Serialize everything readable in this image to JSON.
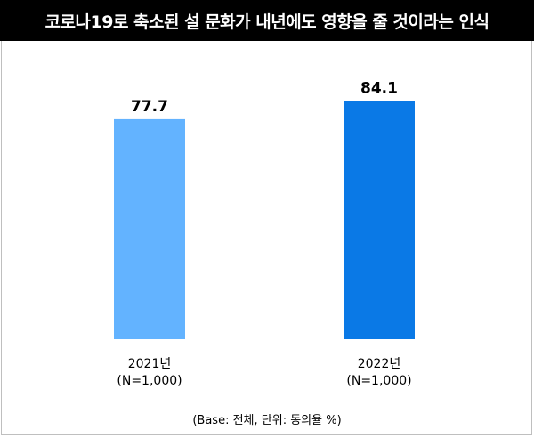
{
  "chart_data": {
    "type": "bar",
    "title": "코로나19로 축소된 설 문화가 내년에도 영향을 줄 것이라는 인식",
    "categories": [
      "2021년",
      "2022년"
    ],
    "category_sublabels": [
      "(N=1,000)",
      "(N=1,000)"
    ],
    "value_labels": [
      "77.7",
      "84.1"
    ],
    "values": [
      77.7,
      84.1
    ],
    "colors": [
      "#63b3ff",
      "#0a79e6"
    ],
    "note": "(Base: 전체, 단위: 동의율 %)",
    "grid": false
  }
}
